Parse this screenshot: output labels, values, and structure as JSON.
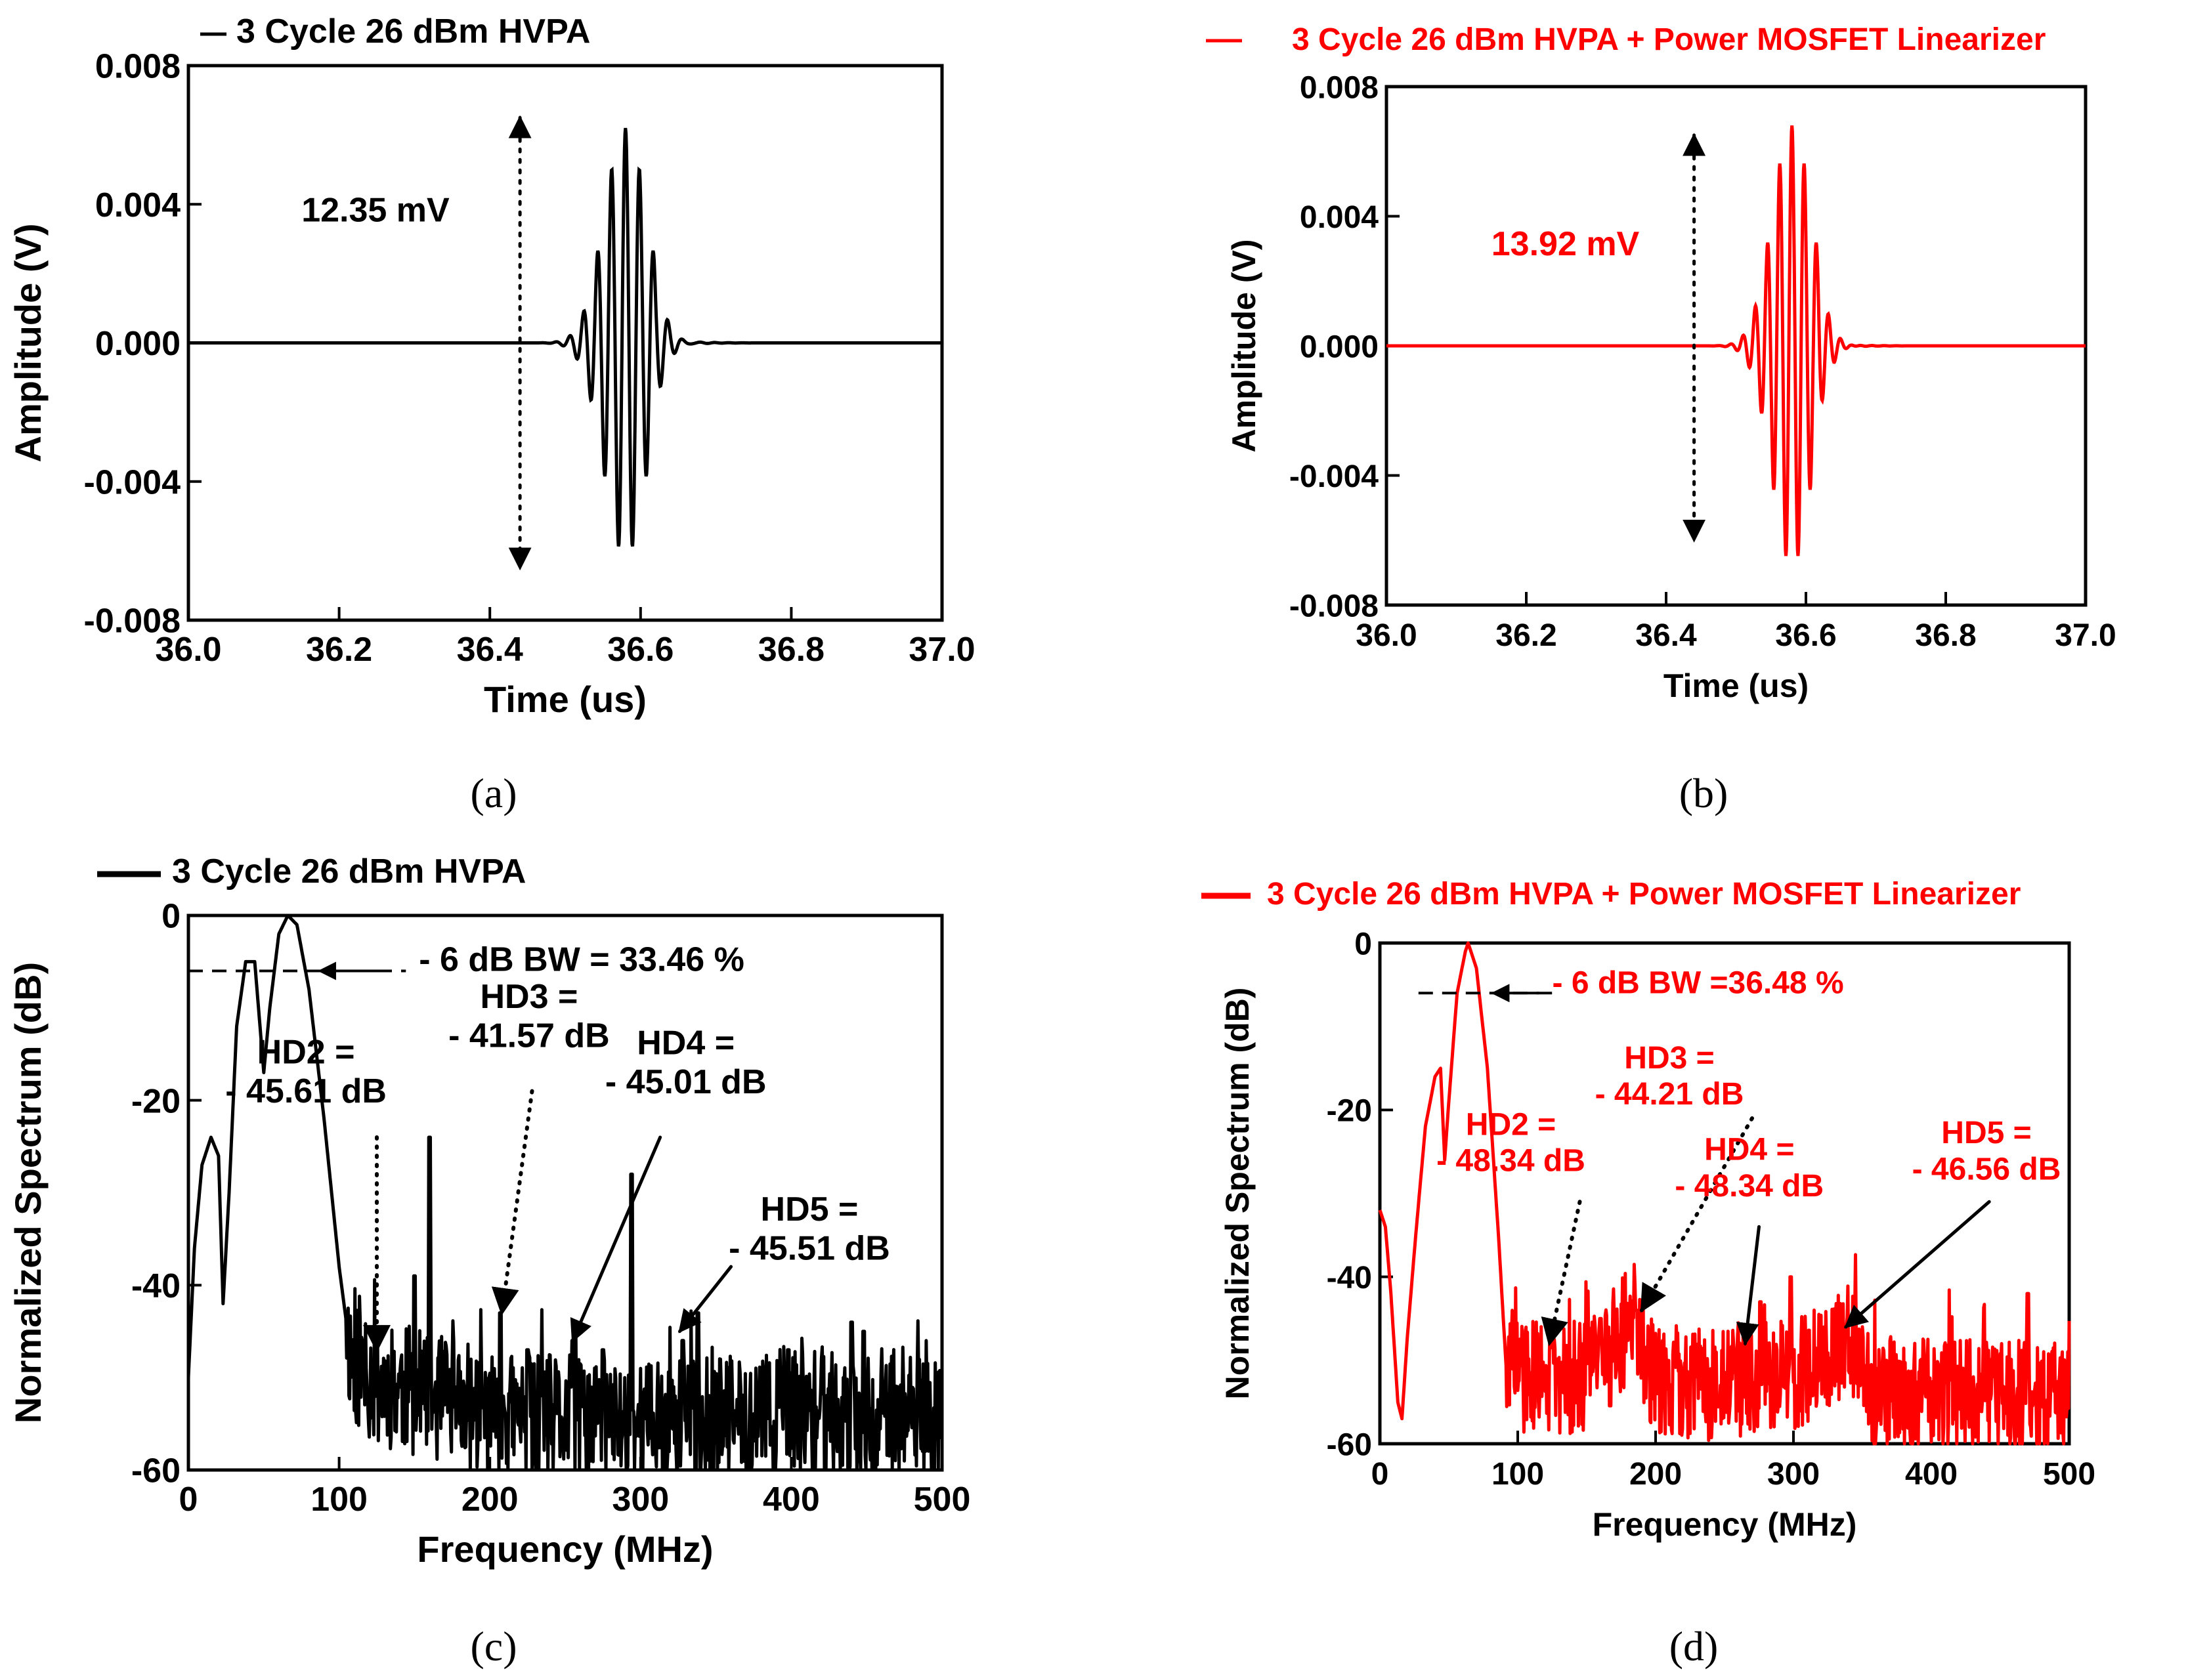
{
  "colors": {
    "black": "#000000",
    "red": "#ff0000"
  },
  "charts": [
    {
      "id": "a",
      "type": "line",
      "subfig": "(a)",
      "color": "#000000",
      "legend": "3 Cycle 26 dBm HVPA",
      "xlabel": "Time (us)",
      "ylabel": "Amplitude (V)",
      "xlim": [
        36.0,
        37.0
      ],
      "ylim": [
        -0.008,
        0.008
      ],
      "xticks": [
        "36.0",
        "36.2",
        "36.4",
        "36.6",
        "36.8",
        "37.0"
      ],
      "yticks": [
        "-0.008",
        "-0.004",
        "0.000",
        "0.004",
        "0.008"
      ],
      "pulse": {
        "center": 36.58,
        "width": 0.04,
        "period": 0.0185,
        "amp": 0.0062,
        "ring_start": 36.62,
        "ring_amp": 0.0006
      },
      "arrow": {
        "x": 36.44,
        "y_top": 0.0065,
        "y_bottom": -0.0065,
        "label": "12.35 mV",
        "label_x": 36.15,
        "label_y": 0.0035
      }
    },
    {
      "id": "b",
      "type": "line",
      "subfig": "(b)",
      "color": "#ff0000",
      "legend": "3 Cycle 26 dBm HVPA + Power MOSFET Linearizer",
      "xlabel": "Time (us)",
      "ylabel": "Amplitude (V)",
      "xlim": [
        36.0,
        37.0
      ],
      "ylim": [
        -0.008,
        0.008
      ],
      "xticks": [
        "36.0",
        "36.2",
        "36.4",
        "36.6",
        "36.8",
        "37.0"
      ],
      "yticks": [
        "-0.008",
        "-0.004",
        "0.000",
        "0.004",
        "0.008"
      ],
      "pulse": {
        "center": 36.58,
        "width": 0.04,
        "period": 0.0175,
        "amp": 0.0068,
        "ring_start": 36.62,
        "ring_amp": 0.0005
      },
      "arrow": {
        "x": 36.44,
        "y_top": 0.0065,
        "y_bottom": -0.006,
        "label": "13.92 mV",
        "label_x": 36.15,
        "label_y": 0.0028
      }
    },
    {
      "id": "c",
      "type": "line",
      "subfig": "(c)",
      "color": "#000000",
      "legend": "3 Cycle 26 dBm HVPA",
      "xlabel": "Frequency (MHz)",
      "ylabel": "Normalized Spectrum (dB)",
      "xlim": [
        0,
        500
      ],
      "ylim": [
        -60,
        0
      ],
      "xticks": [
        "0",
        "100",
        "200",
        "300",
        "400",
        "500"
      ],
      "yticks": [
        "-60",
        "-40",
        "-20",
        "0"
      ],
      "spectrum": {
        "key": [
          [
            0,
            -50
          ],
          [
            4,
            -36
          ],
          [
            9,
            -27
          ],
          [
            15,
            -24
          ],
          [
            20,
            -26
          ],
          [
            23,
            -42
          ],
          [
            27,
            -30
          ],
          [
            32,
            -12
          ],
          [
            38,
            -5
          ],
          [
            44,
            -5
          ],
          [
            50,
            -17
          ],
          [
            54,
            -10
          ],
          [
            60,
            -2
          ],
          [
            66,
            0
          ],
          [
            72,
            -1
          ],
          [
            80,
            -8
          ],
          [
            90,
            -22
          ],
          [
            100,
            -38
          ],
          [
            108,
            -48
          ],
          [
            120,
            -50
          ],
          [
            200,
            -54
          ],
          [
            300,
            -55
          ],
          [
            400,
            -54
          ],
          [
            500,
            -55
          ]
        ],
        "noise_from": 105,
        "noise_amp": 7,
        "seed": 11,
        "spikes": [
          [
            125,
            -46
          ],
          [
            150,
            -39
          ],
          [
            160,
            -24
          ],
          [
            207,
            -43
          ],
          [
            225,
            -47
          ],
          [
            255,
            -46
          ],
          [
            275,
            -47
          ],
          [
            294,
            -28
          ],
          [
            328,
            -46
          ],
          [
            338,
            -43
          ],
          [
            398,
            -47
          ],
          [
            440,
            -44
          ],
          [
            448,
            -45
          ]
        ]
      },
      "annotations": [
        {
          "lines": [
            "- 6 dB BW = 33.46 %"
          ],
          "x": 153,
          "y": -6
        },
        {
          "lines": [
            "HD2 =",
            "- 45.61 dB"
          ],
          "x": 78,
          "y": -16
        },
        {
          "lines": [
            "HD3 =",
            "- 41.57 dB"
          ],
          "x": 226,
          "y": -10
        },
        {
          "lines": [
            "HD4 =",
            "- 45.01 dB"
          ],
          "x": 330,
          "y": -15
        },
        {
          "lines": [
            "HD5 =",
            "- 45.51 dB"
          ],
          "x": 412,
          "y": -33
        }
      ],
      "bw_arrow": {
        "x1": 0,
        "x2": 87,
        "y": -6,
        "label_x": 153
      },
      "harmonic_arrows": [
        {
          "from": [
            125,
            -24
          ],
          "to": [
            125,
            -47
          ],
          "style": "dotted"
        },
        {
          "from": [
            228,
            -19
          ],
          "to": [
            208,
            -43
          ],
          "style": "dotted"
        },
        {
          "from": [
            313,
            -24
          ],
          "to": [
            255,
            -46
          ],
          "style": "solid"
        },
        {
          "from": [
            360,
            -38
          ],
          "to": [
            326,
            -45
          ],
          "style": "solid"
        }
      ]
    },
    {
      "id": "d",
      "type": "line",
      "subfig": "(d)",
      "color": "#ff0000",
      "legend": "3 Cycle 26 dBm HVPA + Power MOSFET Linearizer",
      "xlabel": "Frequency (MHz)",
      "ylabel": "Normalized Spectrum (dB)",
      "xlim": [
        0,
        500
      ],
      "ylim": [
        -60,
        0
      ],
      "xticks": [
        "0",
        "100",
        "200",
        "300",
        "400",
        "500"
      ],
      "yticks": [
        "-60",
        "-40",
        "-20",
        "0"
      ],
      "spectrum": {
        "key": [
          [
            0,
            -32
          ],
          [
            4,
            -34
          ],
          [
            8,
            -42
          ],
          [
            13,
            -55
          ],
          [
            16,
            -57
          ],
          [
            20,
            -47
          ],
          [
            26,
            -35
          ],
          [
            33,
            -22
          ],
          [
            40,
            -16
          ],
          [
            44,
            -15
          ],
          [
            47,
            -26
          ],
          [
            50,
            -19
          ],
          [
            56,
            -6
          ],
          [
            62,
            -1
          ],
          [
            64,
            0
          ],
          [
            70,
            -3
          ],
          [
            78,
            -15
          ],
          [
            86,
            -35
          ],
          [
            92,
            -52
          ],
          [
            100,
            -52
          ],
          [
            150,
            -52
          ],
          [
            185,
            -45
          ],
          [
            200,
            -53
          ],
          [
            300,
            -52
          ],
          [
            340,
            -47
          ],
          [
            360,
            -54
          ],
          [
            500,
            -55
          ]
        ],
        "noise_from": 92,
        "noise_amp": 7,
        "seed": 29,
        "spikes": [
          [
            160,
            -45
          ],
          [
            186,
            -44
          ],
          [
            276,
            -43
          ],
          [
            298,
            -40
          ],
          [
            338,
            -46
          ],
          [
            470,
            -42
          ]
        ]
      },
      "annotations": [
        {
          "lines": [
            "- 6 dB BW =36.48 %"
          ],
          "x": 125,
          "y": -6
        },
        {
          "lines": [
            "HD2 =",
            "- 48.34 dB"
          ],
          "x": 95,
          "y": -23
        },
        {
          "lines": [
            "HD3 =",
            "- 44.21 dB"
          ],
          "x": 210,
          "y": -15
        },
        {
          "lines": [
            "HD4 =",
            "- 48.34 dB"
          ],
          "x": 268,
          "y": -26
        },
        {
          "lines": [
            "HD5 =",
            "- 46.56 dB"
          ],
          "x": 440,
          "y": -24
        }
      ],
      "bw_arrow": {
        "x1": 28,
        "x2": 82,
        "y": -6,
        "label_x": 125
      },
      "harmonic_arrows": [
        {
          "from": [
            145,
            -31
          ],
          "to": [
            123,
            -48
          ],
          "style": "dotted"
        },
        {
          "from": [
            270,
            -21
          ],
          "to": [
            190,
            -44
          ],
          "style": "dotted"
        },
        {
          "from": [
            275,
            -34
          ],
          "to": [
            265,
            -48
          ],
          "style": "solid"
        },
        {
          "from": [
            442,
            -31
          ],
          "to": [
            338,
            -46
          ],
          "style": "solid"
        }
      ]
    }
  ]
}
